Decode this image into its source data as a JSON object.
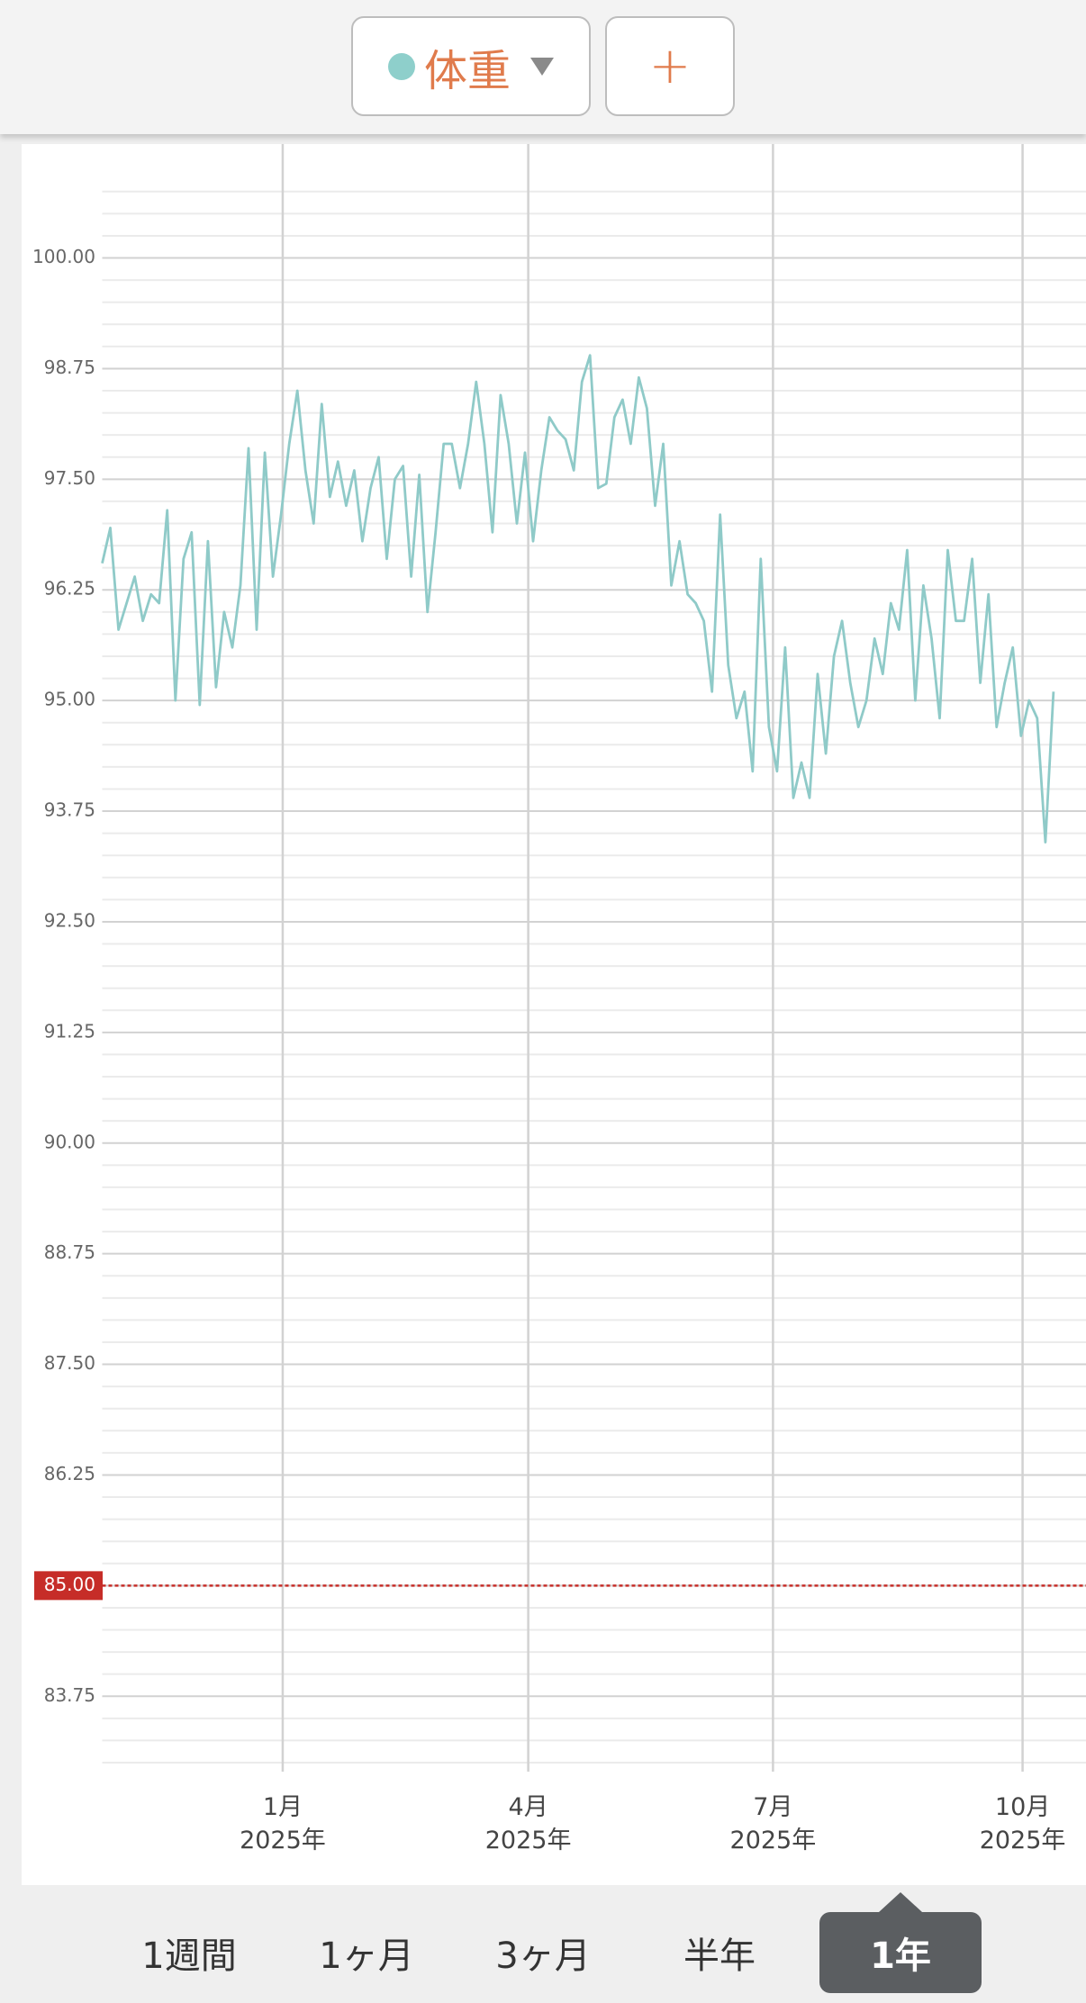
{
  "header": {
    "metric_button": {
      "label": "体重",
      "color": "#8ecfcb"
    },
    "add_button": {
      "label": "+"
    }
  },
  "chart_data": {
    "type": "line",
    "color": "#8fcac8",
    "values": [
      96.55,
      96.95,
      95.8,
      96.1,
      96.4,
      95.9,
      96.2,
      96.1,
      97.15,
      95.0,
      96.6,
      96.9,
      94.95,
      96.8,
      95.15,
      96.0,
      95.6,
      96.3,
      97.85,
      95.8,
      97.8,
      96.4,
      97.1,
      97.9,
      98.5,
      97.6,
      97.0,
      98.35,
      97.3,
      97.7,
      97.2,
      97.6,
      96.8,
      97.4,
      97.75,
      96.6,
      97.5,
      97.65,
      96.4,
      97.55,
      96.0,
      96.9,
      97.9,
      97.9,
      97.4,
      97.9,
      98.6,
      97.9,
      96.9,
      98.45,
      97.9,
      97.0,
      97.8,
      96.8,
      97.6,
      98.2,
      98.05,
      97.95,
      97.6,
      98.6,
      98.9,
      97.4,
      97.45,
      98.2,
      98.4,
      97.9,
      98.65,
      98.3,
      97.2,
      97.9,
      96.3,
      96.8,
      96.2,
      96.1,
      95.9,
      95.1,
      97.1,
      95.4,
      94.8,
      95.1,
      94.2,
      96.6,
      94.7,
      94.2,
      95.6,
      93.9,
      94.3,
      93.9,
      95.3,
      94.4,
      95.5,
      95.9,
      95.2,
      94.7,
      95.0,
      95.7,
      95.3,
      96.1,
      95.8,
      96.7,
      95.0,
      96.3,
      95.7,
      94.8,
      96.7,
      95.9,
      95.9,
      96.6,
      95.2,
      96.2,
      94.7,
      95.2,
      95.6,
      94.6,
      95.0,
      94.8,
      93.4,
      95.1
    ],
    "xlim": [
      0,
      121
    ],
    "xticks": [
      {
        "value": 22.2,
        "label": "1月",
        "sublabel": "2025年"
      },
      {
        "value": 52.4,
        "label": "4月",
        "sublabel": "2025年"
      },
      {
        "value": 82.5,
        "label": "7月",
        "sublabel": "2025年"
      },
      {
        "value": 113.2,
        "label": "10月",
        "sublabel": "2025年"
      }
    ],
    "ylim": [
      83,
      100.75
    ],
    "yticks": [
      83.75,
      {
        "value": 85,
        "label": "85.00"
      },
      86.25,
      {
        "value": 87.5,
        "label": "87.50"
      },
      88.75,
      {
        "value": 90,
        "label": "90.00"
      },
      91.25,
      {
        "value": 92.5,
        "label": "92.50"
      },
      93.75,
      {
        "value": 95,
        "label": "95.00"
      },
      96.25,
      {
        "value": 97.5,
        "label": "97.50"
      },
      98.75,
      {
        "value": 100,
        "label": "100.00"
      }
    ],
    "minor_yticks": [
      83.0,
      83.25,
      83.5,
      84.0,
      84.25,
      84.5,
      84.75,
      85.25,
      85.5,
      85.75,
      86.0,
      86.5,
      86.75,
      87.0,
      87.25,
      87.75,
      88.0,
      88.25,
      88.5,
      89.0,
      89.25,
      89.5,
      89.75,
      90.25,
      90.5,
      90.75,
      91.0,
      91.5,
      91.75,
      92.0,
      92.25,
      92.75,
      93.0,
      93.25,
      93.5,
      94.0,
      94.25,
      94.5,
      94.75,
      95.25,
      95.5,
      95.75,
      96.0,
      96.5,
      96.75,
      97.0,
      97.25,
      97.75,
      98.0,
      98.25,
      98.5,
      99.0,
      99.25,
      99.5,
      99.75,
      100.25,
      100.5,
      100.75
    ],
    "reference_line": {
      "value": 85,
      "color": "#c62d28"
    },
    "grid": true
  },
  "period_tabs": {
    "items": [
      "1週間",
      "1ヶ月",
      "3ヶ月",
      "半年",
      "1年"
    ],
    "selected": 4
  }
}
